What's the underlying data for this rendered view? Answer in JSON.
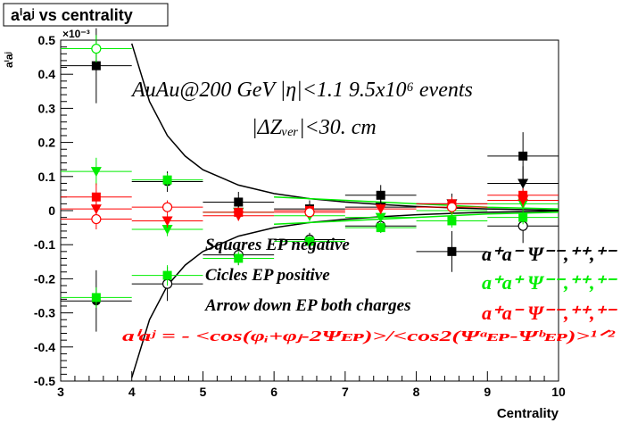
{
  "chart_data": {
    "type": "scatter",
    "title": "aⁱaʲ vs centrality",
    "xlabel": "Centrality",
    "ylabel": "aⁱaʲ",
    "y_exponent_label": "×10⁻³",
    "xlim": [
      3,
      10
    ],
    "ylim": [
      -0.5,
      0.5
    ],
    "y_scale_factor": 0.001,
    "x_ticks": [
      "3",
      "4",
      "5",
      "6",
      "7",
      "8",
      "9",
      "10"
    ],
    "y_ticks": [
      "-0.5",
      "-0.4",
      "-0.3",
      "-0.2",
      "-0.1",
      "0",
      "0.1",
      "0.2",
      "0.3",
      "0.4",
      "0.5"
    ],
    "annotations": {
      "line1": "AuAu@200 GeV |η|<1.1 9.5x10⁶ events",
      "line2": "|ΔZᵥₑᵣ|<30. cm",
      "legend_squares": "Squares EP negative",
      "legend_circles": "Cicles EP positive",
      "legend_arrows": "Arrow down EP both charges",
      "formula": "aⁱaʲ = - <cos(φᵢ+φⱼ-2Ψᴇᴘ)>/<cos2(Ψᵃᴇᴘ-Ψᵇᴇᴘ)>¹ᐟ²",
      "label_mm": "a⁺a⁻ Ψ⁻⁻,⁺⁺,⁺⁻",
      "label_pp": "a⁺a⁺ Ψ⁻⁻,⁺⁺,⁺⁻",
      "label_pm": "a⁺a⁻ Ψ⁻⁻,⁺⁺,⁺⁻"
    },
    "colors": {
      "black": "#000000",
      "green": "#00ee00",
      "red": "#ff0000"
    },
    "series": [
      {
        "color": "black",
        "points": [
          {
            "x": 3.5,
            "y": 0.425,
            "err": 0.11,
            "marker": "square"
          },
          {
            "x": 3.5,
            "y": -0.265,
            "err": 0.09,
            "marker": "circle-filled"
          },
          {
            "x": 4.5,
            "y": 0.085,
            "err": 0.03,
            "marker": "circle-filled"
          },
          {
            "x": 4.5,
            "y": -0.215,
            "err": 0.05,
            "marker": "circle-open"
          },
          {
            "x": 5.5,
            "y": 0.025,
            "err": 0.03,
            "marker": "square"
          },
          {
            "x": 5.5,
            "y": -0.13,
            "err": 0.03,
            "marker": "circle-open"
          },
          {
            "x": 5.5,
            "y": -0.005,
            "err": 0.02,
            "marker": "triangle-down"
          },
          {
            "x": 6.5,
            "y": 0.005,
            "err": 0.025,
            "marker": "square"
          },
          {
            "x": 6.5,
            "y": -0.085,
            "err": 0.02,
            "marker": "circle-open"
          },
          {
            "x": 7.5,
            "y": 0.045,
            "err": 0.03,
            "marker": "square"
          },
          {
            "x": 7.5,
            "y": 0.01,
            "err": 0.02,
            "marker": "triangle-down"
          },
          {
            "x": 7.5,
            "y": -0.045,
            "err": 0.02,
            "marker": "circle-open"
          },
          {
            "x": 8.5,
            "y": -0.12,
            "err": 0.06,
            "marker": "square"
          },
          {
            "x": 8.5,
            "y": 0.02,
            "err": 0.03,
            "marker": "triangle-down"
          },
          {
            "x": 9.5,
            "y": 0.16,
            "err": 0.07,
            "marker": "square"
          },
          {
            "x": 9.5,
            "y": 0.08,
            "err": 0.05,
            "marker": "triangle-down"
          },
          {
            "x": 9.5,
            "y": -0.045,
            "err": 0.05,
            "marker": "circle-open"
          }
        ]
      },
      {
        "color": "green",
        "points": [
          {
            "x": 3.5,
            "y": 0.475,
            "err": 0.04,
            "marker": "circle-open"
          },
          {
            "x": 3.5,
            "y": 0.115,
            "err": 0.04,
            "marker": "triangle-down"
          },
          {
            "x": 3.5,
            "y": -0.255,
            "err": 0.03,
            "marker": "square"
          },
          {
            "x": 4.5,
            "y": 0.09,
            "err": 0.02,
            "marker": "square"
          },
          {
            "x": 4.5,
            "y": -0.055,
            "err": 0.02,
            "marker": "triangle-down"
          },
          {
            "x": 4.5,
            "y": -0.19,
            "err": 0.03,
            "marker": "square"
          },
          {
            "x": 5.5,
            "y": -0.14,
            "err": 0.02,
            "marker": "square"
          },
          {
            "x": 5.5,
            "y": -0.005,
            "err": 0.015,
            "marker": "triangle-down"
          },
          {
            "x": 6.5,
            "y": -0.09,
            "err": 0.015,
            "marker": "square"
          },
          {
            "x": 6.5,
            "y": -0.015,
            "err": 0.015,
            "marker": "triangle-down"
          },
          {
            "x": 7.5,
            "y": -0.05,
            "err": 0.015,
            "marker": "square"
          },
          {
            "x": 7.5,
            "y": -0.02,
            "err": 0.015,
            "marker": "triangle-down"
          },
          {
            "x": 8.5,
            "y": -0.03,
            "err": 0.02,
            "marker": "square"
          },
          {
            "x": 8.5,
            "y": 0.0,
            "err": 0.02,
            "marker": "triangle-down"
          },
          {
            "x": 9.5,
            "y": -0.02,
            "err": 0.02,
            "marker": "square"
          },
          {
            "x": 9.5,
            "y": 0.02,
            "err": 0.02,
            "marker": "triangle-down"
          }
        ]
      },
      {
        "color": "red",
        "points": [
          {
            "x": 3.5,
            "y": 0.04,
            "err": 0.04,
            "marker": "square"
          },
          {
            "x": 3.5,
            "y": 0.005,
            "err": 0.03,
            "marker": "triangle-down"
          },
          {
            "x": 3.5,
            "y": -0.025,
            "err": 0.03,
            "marker": "circle-open"
          },
          {
            "x": 4.5,
            "y": 0.01,
            "err": 0.02,
            "marker": "circle-open"
          },
          {
            "x": 4.5,
            "y": -0.03,
            "err": 0.02,
            "marker": "triangle-down"
          },
          {
            "x": 5.5,
            "y": -0.005,
            "err": 0.015,
            "marker": "square"
          },
          {
            "x": 5.5,
            "y": -0.015,
            "err": 0.015,
            "marker": "triangle-down"
          },
          {
            "x": 6.5,
            "y": 0.0,
            "err": 0.015,
            "marker": "square"
          },
          {
            "x": 6.5,
            "y": -0.005,
            "err": 0.015,
            "marker": "circle-open"
          },
          {
            "x": 7.5,
            "y": 0.005,
            "err": 0.015,
            "marker": "triangle-down"
          },
          {
            "x": 8.5,
            "y": 0.02,
            "err": 0.02,
            "marker": "square"
          },
          {
            "x": 8.5,
            "y": 0.01,
            "err": 0.02,
            "marker": "circle-open"
          },
          {
            "x": 9.5,
            "y": 0.045,
            "err": 0.02,
            "marker": "square"
          },
          {
            "x": 9.5,
            "y": 0.03,
            "err": 0.02,
            "marker": "triangle-down"
          }
        ]
      }
    ],
    "curves": [
      {
        "color": "black",
        "name": "upper-envelope",
        "x": [
          4.0,
          4.25,
          4.5,
          4.75,
          5.0,
          5.5,
          6.0,
          6.5,
          7.0,
          7.5,
          8.0,
          8.5,
          9.0,
          9.5,
          10.0
        ],
        "y": [
          0.49,
          0.32,
          0.22,
          0.16,
          0.12,
          0.075,
          0.05,
          0.035,
          0.025,
          0.018,
          0.012,
          0.008,
          0.005,
          0.003,
          0.001
        ]
      },
      {
        "color": "black",
        "name": "lower-envelope",
        "x": [
          4.0,
          4.25,
          4.5,
          4.75,
          5.0,
          5.5,
          6.0,
          6.5,
          7.0,
          7.5,
          8.0,
          8.5,
          9.0,
          9.5,
          10.0
        ],
        "y": [
          -0.49,
          -0.32,
          -0.22,
          -0.16,
          -0.12,
          -0.075,
          -0.05,
          -0.035,
          -0.025,
          -0.018,
          -0.012,
          -0.008,
          -0.005,
          -0.003,
          -0.001
        ]
      },
      {
        "color": "green",
        "name": "upper-envelope-green",
        "x": [
          6.0,
          7.0,
          8.0,
          9.0,
          10.0
        ],
        "y": [
          0.04,
          0.03,
          0.02,
          0.01,
          0.005
        ]
      },
      {
        "color": "green",
        "name": "lower-envelope-green",
        "x": [
          6.0,
          7.0,
          8.0,
          9.0,
          10.0
        ],
        "y": [
          -0.04,
          -0.03,
          -0.02,
          -0.01,
          -0.005
        ]
      }
    ]
  }
}
